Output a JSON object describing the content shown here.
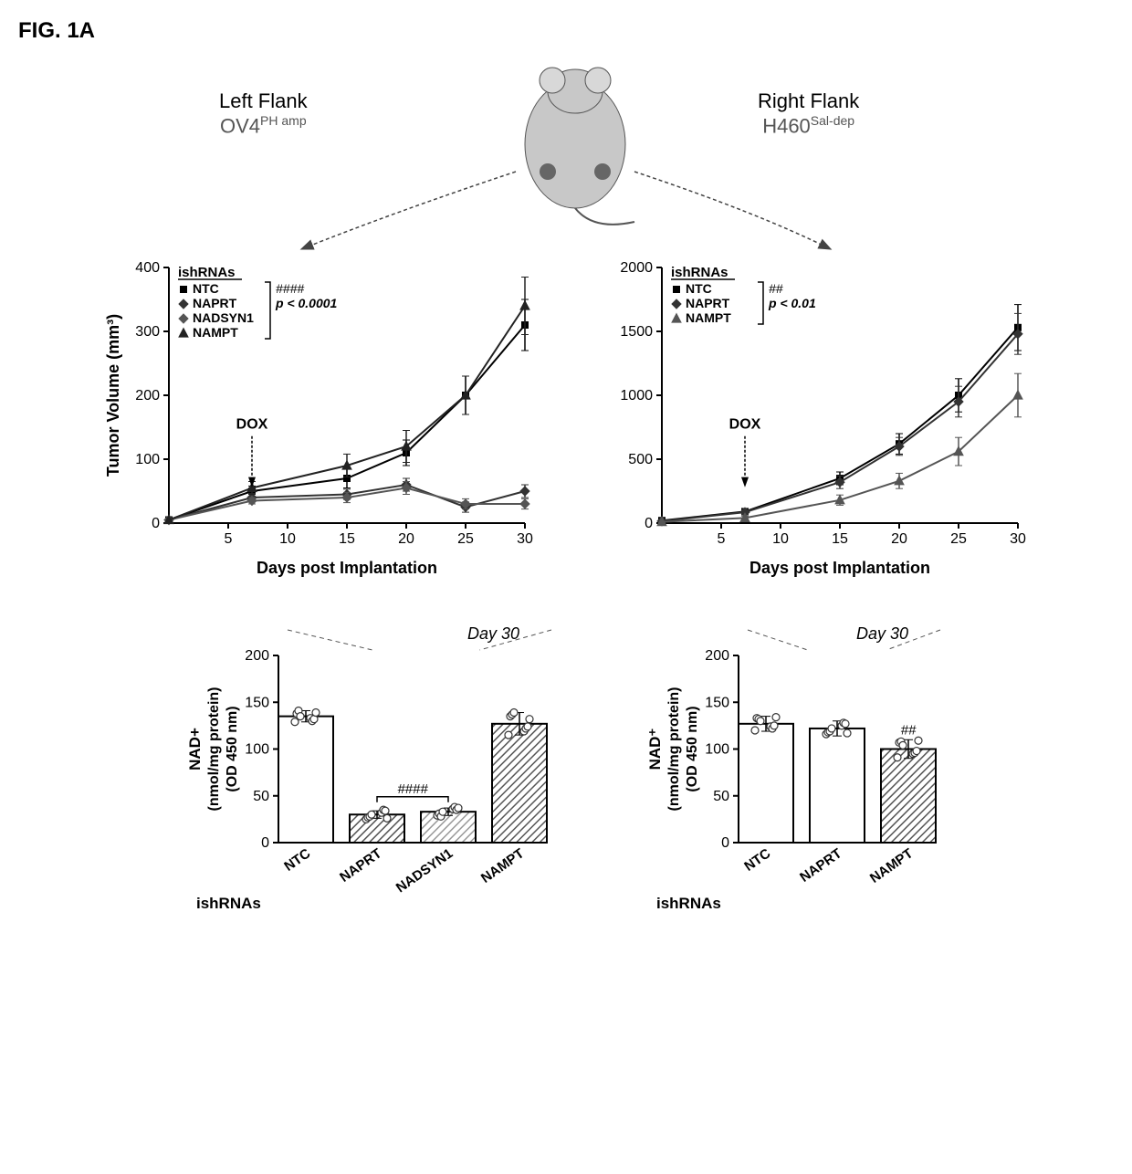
{
  "figure_label": "FIG. 1A",
  "top": {
    "left_flank": {
      "title": "Left Flank",
      "subtitle_main": "OV4",
      "subtitle_sup": "PH amp"
    },
    "right_flank": {
      "title": "Right Flank",
      "subtitle_main": "H460",
      "subtitle_sup": "Sal-dep"
    }
  },
  "line_left": {
    "type": "line",
    "legend_title": "ishRNAs",
    "legend_items": [
      "NTC",
      "NAPRT",
      "NADSYN1",
      "NAMPT"
    ],
    "sig_text": "####",
    "p_text": "p < 0.0001",
    "dox_label": "DOX",
    "y_label": "Tumor Volume (mm³)",
    "x_label": "Days post Implantation",
    "ylim": [
      0,
      400
    ],
    "ytick_step": 100,
    "xlim": [
      0,
      30
    ],
    "xticks": [
      5,
      10,
      15,
      20,
      25,
      30
    ],
    "series": {
      "NTC": {
        "color": "#000000",
        "marker": "square",
        "x": [
          0,
          7,
          15,
          20,
          25,
          30
        ],
        "y": [
          5,
          50,
          70,
          110,
          200,
          310
        ],
        "err": [
          0,
          8,
          15,
          20,
          30,
          40
        ]
      },
      "NAPRT": {
        "color": "#333333",
        "marker": "diamond",
        "x": [
          0,
          7,
          15,
          20,
          25,
          30
        ],
        "y": [
          5,
          40,
          45,
          60,
          25,
          50
        ],
        "err": [
          0,
          6,
          8,
          10,
          8,
          10
        ]
      },
      "NADSYN1": {
        "color": "#555555",
        "marker": "diamond",
        "x": [
          0,
          7,
          15,
          20,
          25,
          30
        ],
        "y": [
          5,
          35,
          40,
          55,
          30,
          30
        ],
        "err": [
          0,
          5,
          8,
          10,
          8,
          8
        ]
      },
      "NAMPT": {
        "color": "#222222",
        "marker": "triangle",
        "x": [
          0,
          7,
          15,
          20,
          25,
          30
        ],
        "y": [
          5,
          55,
          90,
          120,
          200,
          340
        ],
        "err": [
          0,
          10,
          18,
          25,
          30,
          45
        ]
      }
    },
    "title_fontsize": 16,
    "label_fontsize": 18,
    "tick_fontsize": 16,
    "line_width": 2,
    "marker_size": 7,
    "background_color": "#ffffff"
  },
  "line_right": {
    "type": "line",
    "legend_title": "ishRNAs",
    "legend_items": [
      "NTC",
      "NAPRT",
      "NAMPT"
    ],
    "sig_text": "##",
    "p_text": "p < 0.01",
    "dox_label": "DOX",
    "x_label": "Days post Implantation",
    "ylim": [
      0,
      2000
    ],
    "ytick_step": 500,
    "xlim": [
      0,
      30
    ],
    "xticks": [
      5,
      10,
      15,
      20,
      25,
      30
    ],
    "series": {
      "NTC": {
        "color": "#000000",
        "marker": "square",
        "x": [
          0,
          7,
          15,
          20,
          25,
          30
        ],
        "y": [
          20,
          90,
          350,
          620,
          1000,
          1530
        ],
        "err": [
          0,
          20,
          50,
          80,
          130,
          180
        ]
      },
      "NAPRT": {
        "color": "#333333",
        "marker": "diamond",
        "x": [
          0,
          7,
          15,
          20,
          25,
          30
        ],
        "y": [
          15,
          85,
          320,
          600,
          950,
          1480
        ],
        "err": [
          0,
          20,
          50,
          70,
          120,
          160
        ]
      },
      "NAMPT": {
        "color": "#555555",
        "marker": "triangle",
        "x": [
          0,
          7,
          15,
          20,
          25,
          30
        ],
        "y": [
          10,
          40,
          180,
          330,
          560,
          1000
        ],
        "err": [
          0,
          15,
          40,
          60,
          110,
          170
        ]
      }
    },
    "title_fontsize": 16,
    "label_fontsize": 18,
    "tick_fontsize": 16,
    "line_width": 2,
    "marker_size": 7,
    "background_color": "#ffffff"
  },
  "bar_left": {
    "type": "bar",
    "y_label_line1": "NAD+",
    "y_label_line2": "(nmol/mg protein)",
    "y_label_line3": "(OD 450 nm)",
    "x_prefix": "ishRNAs",
    "categories": [
      "NTC",
      "NAPRT",
      "NADSYN1",
      "NAMPT"
    ],
    "values": [
      135,
      30,
      33,
      127
    ],
    "errors": [
      6,
      4,
      4,
      12
    ],
    "scatter_offsets": [
      [
        -6,
        -2,
        3,
        -5,
        6,
        -3,
        0,
        4
      ],
      [
        -5,
        2,
        -3,
        5,
        -2,
        4,
        0,
        -4
      ],
      [
        -4,
        3,
        -2,
        5,
        -5,
        2,
        0,
        4
      ],
      [
        -12,
        -8,
        8,
        -5,
        10,
        -3,
        12,
        5
      ]
    ],
    "fills": [
      "#ffffff",
      "hatch-gray",
      "hatch-light",
      "hatch-gray"
    ],
    "sig_text": "####",
    "sig_over": [
      1,
      2
    ],
    "ylim": [
      0,
      200
    ],
    "ytick_step": 50,
    "day30": "Day 30",
    "bar_width": 0.7,
    "tick_fontsize": 16,
    "label_fontsize": 18
  },
  "bar_right": {
    "type": "bar",
    "y_label_line1": "NAD⁺",
    "y_label_line2": "(nmol/mg protein)",
    "y_label_line3": "(OD 450 nm)",
    "x_prefix": "ishRNAs",
    "categories": [
      "NTC",
      "NAPRT",
      "NAMPT"
    ],
    "values": [
      127,
      122,
      100
    ],
    "errors": [
      8,
      8,
      10
    ],
    "scatter_offsets": [
      [
        -7,
        -3,
        6,
        -5,
        5,
        -2,
        3,
        7
      ],
      [
        -6,
        3,
        -4,
        6,
        -3,
        5,
        0,
        -5
      ],
      [
        -9,
        -5,
        7,
        -4,
        8,
        -2,
        4,
        9
      ]
    ],
    "fills": [
      "#ffffff",
      "#ffffff",
      "hatch-gray"
    ],
    "sig_text": "##",
    "sig_over": [
      2
    ],
    "ylim": [
      0,
      200
    ],
    "ytick_step": 50,
    "day30": "Day 30",
    "bar_width": 0.7,
    "tick_fontsize": 16,
    "label_fontsize": 18
  },
  "colors": {
    "axis": "#000000",
    "grid": "#cccccc",
    "text": "#000000",
    "gray": "#777777",
    "hatch_dark": "#555555",
    "hatch_light": "#999999",
    "dot_fill": "#ffffff",
    "dot_stroke": "#333333",
    "mouse_body": "#c8c8c8",
    "mouse_stroke": "#555555",
    "tumor_dot": "#666666"
  }
}
